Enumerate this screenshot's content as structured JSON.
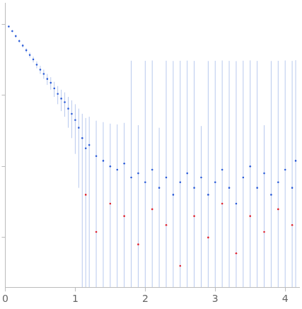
{
  "chart_data": {
    "type": "scatter",
    "log": "y",
    "grid": false,
    "tick_labels": "x",
    "xlim": [
      0,
      4.2
    ],
    "xticks": [
      0,
      1,
      2,
      3,
      4
    ],
    "ylim": [
      0.0002,
      2
    ],
    "yticks": [
      0.001,
      0.01,
      0.1,
      1
    ],
    "series": [
      {
        "color": "#2a5bd7",
        "marker": "circle",
        "x": [
          0.05,
          0.1,
          0.15,
          0.2,
          0.25,
          0.3,
          0.35,
          0.4,
          0.45,
          0.5,
          0.55,
          0.6,
          0.65,
          0.7,
          0.75,
          0.8,
          0.85,
          0.9,
          0.95,
          1.0,
          1.05,
          1.1,
          1.15,
          1.2,
          1.3,
          1.4,
          1.5,
          1.6,
          1.7,
          1.8,
          1.9,
          2.0,
          2.1,
          2.2,
          2.3,
          2.4,
          2.5,
          2.6,
          2.7,
          2.8,
          2.9,
          3.0,
          3.1,
          3.2,
          3.3,
          3.4,
          3.5,
          3.6,
          3.7,
          3.8,
          3.9,
          4.0,
          4.1,
          4.15
        ],
        "values": [
          0.93,
          0.8,
          0.68,
          0.58,
          0.5,
          0.43,
          0.37,
          0.32,
          0.27,
          0.23,
          0.2,
          0.17,
          0.15,
          0.125,
          0.105,
          0.09,
          0.08,
          0.065,
          0.055,
          0.045,
          0.035,
          0.025,
          0.018,
          0.02,
          0.014,
          0.012,
          0.01,
          0.009,
          0.011,
          0.007,
          0.008,
          0.006,
          0.009,
          0.005,
          0.007,
          0.004,
          0.006,
          0.008,
          0.005,
          0.007,
          0.004,
          0.006,
          0.009,
          0.005,
          0.003,
          0.007,
          0.01,
          0.005,
          0.008,
          0.004,
          0.006,
          0.009,
          0.005,
          0.012
        ],
        "errors": [
          0.03,
          0.03,
          0.03,
          0.03,
          0.03,
          0.03,
          0.03,
          0.03,
          0.03,
          0.03,
          0.03,
          0.03,
          0.03,
          0.03,
          0.03,
          0.03,
          0.03,
          0.03,
          0.03,
          0.03,
          0.03,
          0.03,
          0.03,
          0.03,
          0.03,
          0.03,
          0.03,
          0.03,
          0.03,
          0.3,
          0.03,
          0.3,
          0.3,
          0.03,
          0.3,
          0.3,
          0.3,
          0.3,
          0.3,
          0.03,
          0.3,
          0.3,
          0.3,
          0.3,
          0.3,
          0.3,
          0.3,
          0.3,
          0.03,
          0.3,
          0.3,
          0.3,
          0.3,
          0.3
        ]
      },
      {
        "color": "#e0212b",
        "marker": "circle",
        "x": [
          1.15,
          1.3,
          1.5,
          1.7,
          1.9,
          2.1,
          2.3,
          2.5,
          2.7,
          2.9,
          3.1,
          3.3,
          3.5,
          3.7,
          3.9,
          4.1
        ],
        "values": [
          0.004,
          0.0012,
          0.003,
          0.002,
          0.0008,
          0.0025,
          0.0015,
          0.0004,
          0.002,
          0.001,
          0.003,
          0.0006,
          0.002,
          0.0012,
          0.0025,
          0.0015
        ]
      }
    ]
  }
}
